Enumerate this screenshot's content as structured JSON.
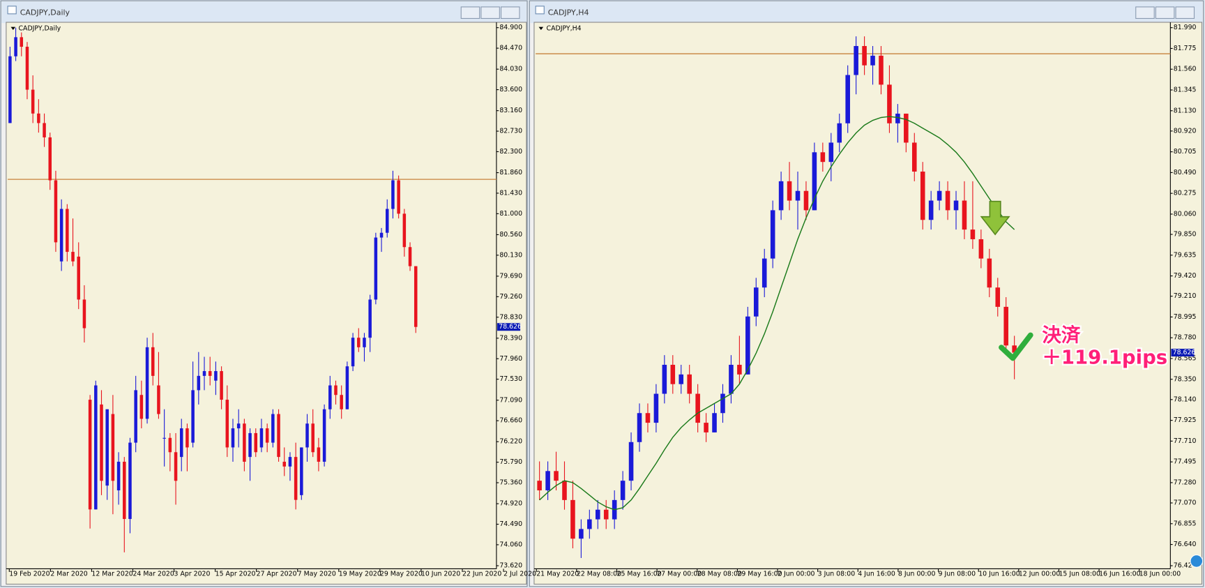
{
  "chart_data": [
    {
      "type": "candlestick",
      "window_title": "CADJPY,Daily",
      "title": "CADJPY,Daily",
      "bull_color": "#1a1ad8",
      "bear_color": "#e8141e",
      "open": [
        82.9,
        84.3,
        84.7,
        84.5,
        83.6,
        83.1,
        82.9,
        82.6,
        81.7,
        80.0,
        81.1,
        80.2,
        80.1,
        79.2,
        77.1,
        74.8,
        77.0,
        75.3,
        76.8,
        75.2,
        75.8,
        74.6,
        76.2,
        77.2,
        76.7,
        78.2,
        77.4,
        76.3,
        76.3,
        76.0,
        75.9,
        76.5,
        76.2,
        77.3,
        77.6,
        77.7,
        77.5,
        77.7,
        77.1,
        76.1,
        76.5,
        76.6,
        75.9,
        76.4,
        76.1,
        76.5,
        76.2,
        76.8,
        75.8,
        75.7,
        75.9,
        75.1,
        76.1,
        76.6,
        76.1,
        75.8,
        76.9,
        77.4,
        77.2,
        76.9,
        77.8,
        78.4,
        78.2,
        78.4,
        79.2,
        80.5,
        80.6,
        81.1,
        81.7,
        81.0,
        80.3,
        79.9
      ],
      "high": [
        84.5,
        84.9,
        84.8,
        84.6,
        83.9,
        83.4,
        83.1,
        82.7,
        81.9,
        81.3,
        81.2,
        80.9,
        80.4,
        79.5,
        77.2,
        77.5,
        77.3,
        76.9,
        77.2,
        76.0,
        75.9,
        76.3,
        77.6,
        77.5,
        78.4,
        78.5,
        78.1,
        76.9,
        76.4,
        76.4,
        76.7,
        76.6,
        77.9,
        78.1,
        78.0,
        78.0,
        77.9,
        77.8,
        77.4,
        76.7,
        76.9,
        76.7,
        76.5,
        76.5,
        76.7,
        76.6,
        76.9,
        76.9,
        76.1,
        76.0,
        76.2,
        76.1,
        76.8,
        76.9,
        76.3,
        77.0,
        77.6,
        77.5,
        77.4,
        77.9,
        78.5,
        78.6,
        78.5,
        79.3,
        80.6,
        80.7,
        81.3,
        81.9,
        81.8,
        81.1,
        80.4,
        79.9
      ],
      "low": [
        82.9,
        84.2,
        84.3,
        83.4,
        82.9,
        82.7,
        82.4,
        81.5,
        80.2,
        79.8,
        80.0,
        79.9,
        79.0,
        78.3,
        74.4,
        74.8,
        75.1,
        75.0,
        74.7,
        74.9,
        73.9,
        74.3,
        76.0,
        76.5,
        76.6,
        77.4,
        76.7,
        75.7,
        75.6,
        74.9,
        75.6,
        75.6,
        76.1,
        77.0,
        77.3,
        77.4,
        77.2,
        76.9,
        75.9,
        75.8,
        76.1,
        75.6,
        75.4,
        75.9,
        76.0,
        76.0,
        76.1,
        75.8,
        75.5,
        75.4,
        74.8,
        75.0,
        75.8,
        75.9,
        75.6,
        75.7,
        76.7,
        77.0,
        76.7,
        76.9,
        77.7,
        78.1,
        77.9,
        78.1,
        79.1,
        80.2,
        80.5,
        80.9,
        80.9,
        80.1,
        79.8,
        78.5
      ],
      "close": [
        84.3,
        84.7,
        84.5,
        83.6,
        83.1,
        82.9,
        82.6,
        81.7,
        80.4,
        81.1,
        80.2,
        80.0,
        79.2,
        78.6,
        74.8,
        77.4,
        75.4,
        76.9,
        75.4,
        75.8,
        74.6,
        76.2,
        77.3,
        76.7,
        78.2,
        77.6,
        76.8,
        76.3,
        76.0,
        75.4,
        76.5,
        76.1,
        77.3,
        77.6,
        77.7,
        77.6,
        77.7,
        77.1,
        76.1,
        76.5,
        76.6,
        75.8,
        76.4,
        76.0,
        76.5,
        76.2,
        76.8,
        75.9,
        75.7,
        75.9,
        75.0,
        76.1,
        76.6,
        76.0,
        75.8,
        76.9,
        77.4,
        77.2,
        76.9,
        77.8,
        78.4,
        78.2,
        78.4,
        79.2,
        80.5,
        80.6,
        81.1,
        81.7,
        81.0,
        80.3,
        79.9,
        78.626
      ],
      "ylim": [
        73.62,
        84.9
      ],
      "yticks": [
        {
          "value": 84.9,
          "label": "84.900"
        },
        {
          "value": 84.47,
          "label": "84.470"
        },
        {
          "value": 84.03,
          "label": "84.030"
        },
        {
          "value": 83.6,
          "label": "83.600"
        },
        {
          "value": 83.16,
          "label": "83.160"
        },
        {
          "value": 82.73,
          "label": "82.730"
        },
        {
          "value": 82.3,
          "label": "82.300"
        },
        {
          "value": 81.86,
          "label": "81.860"
        },
        {
          "value": 81.43,
          "label": "81.430"
        },
        {
          "value": 81.0,
          "label": "81.000"
        },
        {
          "value": 80.56,
          "label": "80.560"
        },
        {
          "value": 80.13,
          "label": "80.130"
        },
        {
          "value": 79.69,
          "label": "79.690"
        },
        {
          "value": 79.26,
          "label": "79.260"
        },
        {
          "value": 78.83,
          "label": "78.830"
        },
        {
          "value": 78.39,
          "label": "78.390"
        },
        {
          "value": 77.96,
          "label": "77.960"
        },
        {
          "value": 77.53,
          "label": "77.530"
        },
        {
          "value": 77.09,
          "label": "77.090"
        },
        {
          "value": 76.66,
          "label": "76.660"
        },
        {
          "value": 76.22,
          "label": "76.220"
        },
        {
          "value": 75.79,
          "label": "75.790"
        },
        {
          "value": 75.36,
          "label": "75.360"
        },
        {
          "value": 74.92,
          "label": "74.920"
        },
        {
          "value": 74.49,
          "label": "74.490"
        },
        {
          "value": 74.06,
          "label": "74.060"
        },
        {
          "value": 73.62,
          "label": "73.620"
        }
      ],
      "x_labels": [
        "19 Feb 2020",
        "2 Mar 2020",
        "12 Mar 2020",
        "24 Mar 2020",
        "3 Apr 2020",
        "15 Apr 2020",
        "27 Apr 2020",
        "7 May 2020",
        "19 May 2020",
        "29 May 2020",
        "10 Jun 2020",
        "22 Jun 2020",
        "2 Jul 2020"
      ],
      "hline": {
        "value": 81.72,
        "color": "#c8823c"
      },
      "last_price": 78.626
    },
    {
      "type": "candlestick",
      "window_title": "CADJPY,H4",
      "title": "CADJPY,H4",
      "bull_color": "#1a1ad8",
      "bear_color": "#e8141e",
      "open": [
        77.3,
        77.2,
        77.4,
        77.3,
        77.1,
        76.7,
        76.8,
        76.9,
        77.0,
        76.9,
        77.1,
        77.3,
        77.7,
        78.0,
        77.9,
        78.2,
        78.5,
        78.3,
        78.4,
        78.2,
        77.9,
        77.8,
        78.0,
        78.2,
        78.5,
        78.4,
        79.0,
        79.3,
        79.6,
        80.1,
        80.4,
        80.2,
        80.3,
        80.1,
        80.7,
        80.6,
        80.8,
        81.0,
        81.5,
        81.8,
        81.6,
        81.7,
        81.4,
        81.0,
        81.1,
        80.8,
        80.5,
        80.0,
        80.2,
        80.3,
        80.1,
        80.2,
        79.9,
        79.8,
        79.6,
        79.3,
        79.1,
        78.7
      ],
      "high": [
        77.5,
        77.5,
        77.6,
        77.5,
        77.3,
        76.9,
        77.0,
        77.1,
        77.1,
        77.2,
        77.4,
        77.8,
        78.1,
        78.1,
        78.3,
        78.6,
        78.6,
        78.5,
        78.5,
        78.3,
        78.0,
        78.1,
        78.3,
        78.6,
        78.8,
        79.1,
        79.4,
        79.7,
        80.2,
        80.5,
        80.6,
        80.5,
        80.4,
        80.8,
        80.8,
        80.9,
        81.1,
        81.6,
        81.9,
        81.9,
        81.8,
        81.8,
        81.6,
        81.2,
        81.1,
        80.9,
        80.6,
        80.3,
        80.4,
        80.4,
        80.3,
        80.4,
        80.4,
        79.9,
        79.7,
        79.4,
        79.2,
        78.8
      ],
      "low": [
        77.1,
        77.1,
        77.2,
        77.0,
        76.6,
        76.5,
        76.7,
        76.8,
        76.8,
        76.8,
        77.0,
        77.2,
        77.6,
        77.8,
        77.8,
        78.1,
        78.2,
        78.2,
        78.1,
        77.8,
        77.7,
        77.8,
        77.9,
        78.1,
        78.3,
        78.4,
        78.9,
        79.2,
        79.5,
        80.0,
        80.1,
        79.9,
        80.0,
        80.1,
        80.5,
        80.4,
        80.7,
        80.9,
        81.3,
        81.5,
        81.4,
        81.3,
        80.9,
        80.8,
        80.7,
        80.4,
        79.9,
        79.9,
        80.1,
        80.0,
        79.9,
        79.8,
        79.7,
        79.5,
        79.2,
        79.0,
        78.6,
        78.35
      ],
      "close": [
        77.2,
        77.4,
        77.3,
        77.1,
        76.7,
        76.8,
        76.9,
        77.0,
        76.9,
        77.1,
        77.3,
        77.7,
        78.0,
        77.9,
        78.2,
        78.5,
        78.3,
        78.4,
        78.2,
        77.9,
        77.8,
        78.0,
        78.2,
        78.5,
        78.4,
        79.0,
        79.3,
        79.6,
        80.1,
        80.4,
        80.2,
        80.3,
        80.1,
        80.7,
        80.6,
        80.8,
        81.0,
        81.5,
        81.8,
        81.6,
        81.7,
        81.4,
        81.0,
        81.1,
        80.8,
        80.5,
        80.0,
        80.2,
        80.3,
        80.1,
        80.2,
        79.9,
        79.8,
        79.6,
        79.3,
        79.1,
        78.7,
        78.626
      ],
      "overlay": {
        "color": "#1a7a1a",
        "values": [
          77.1,
          77.18,
          77.25,
          77.3,
          77.28,
          77.22,
          77.15,
          77.08,
          77.03,
          77.0,
          77.02,
          77.1,
          77.22,
          77.35,
          77.48,
          77.62,
          77.75,
          77.85,
          77.93,
          78.0,
          78.05,
          78.1,
          78.15,
          78.2,
          78.3,
          78.45,
          78.62,
          78.82,
          79.05,
          79.3,
          79.55,
          79.8,
          80.02,
          80.22,
          80.4,
          80.55,
          80.68,
          80.8,
          80.9,
          80.98,
          81.03,
          81.06,
          81.07,
          81.06,
          81.04,
          81.0,
          80.95,
          80.9,
          80.85,
          80.78,
          80.7,
          80.6,
          80.48,
          80.35,
          80.22,
          80.1,
          79.98,
          79.9
        ]
      },
      "ylim": [
        76.42,
        81.99
      ],
      "yticks": [
        {
          "value": 81.99,
          "label": "81.990"
        },
        81.775,
        {
          "value": 81.56,
          "label": "81.560"
        },
        81.345,
        {
          "value": 81.13,
          "label": "81.130"
        },
        {
          "value": 80.92,
          "label": "80.920"
        },
        80.705,
        {
          "value": 80.49,
          "label": "80.490"
        },
        80.275,
        {
          "value": 80.06,
          "label": "80.060"
        },
        {
          "value": 79.85,
          "label": "79.850"
        },
        79.635,
        {
          "value": 79.42,
          "label": "79.420"
        },
        {
          "value": 79.21,
          "label": "79.210"
        },
        78.995,
        {
          "value": 78.78,
          "label": "78.780"
        },
        78.565,
        {
          "value": 78.35,
          "label": "78.350"
        },
        {
          "value": 78.14,
          "label": "78.140"
        },
        77.925,
        {
          "value": 77.71,
          "label": "77.710"
        },
        77.495,
        {
          "value": 77.28,
          "label": "77.280"
        },
        {
          "value": 77.07,
          "label": "77.070"
        },
        76.855,
        {
          "value": 76.64,
          "label": "76.640"
        },
        76.42
      ],
      "x_labels": [
        "21 May 2020",
        "22 May 08:00",
        "25 May 16:00",
        "27 May 00:00",
        "28 May 08:00",
        "29 May 16:00",
        "2 Jun 00:00",
        "3 Jun 08:00",
        "4 Jun 16:00",
        "8 Jun 00:00",
        "9 Jun 08:00",
        "10 Jun 16:00",
        "12 Jun 00:00",
        "15 Jun 08:00",
        "16 Jun 16:00",
        "18 Jun 00:00"
      ],
      "hline": {
        "value": 81.72,
        "color": "#c8823c"
      },
      "last_price": 78.626,
      "annotations": [
        "決済",
        "＋119.1pips"
      ]
    }
  ]
}
